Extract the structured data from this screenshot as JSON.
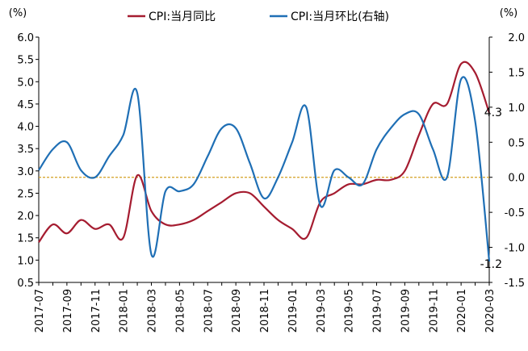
{
  "chart_data": {
    "type": "line",
    "left_unit": "(%)",
    "right_unit": "(%)",
    "left_ylim": [
      0.5,
      6.0
    ],
    "left_ticks": [
      "6.0",
      "5.5",
      "5.0",
      "4.5",
      "4.0",
      "3.5",
      "3.0",
      "2.5",
      "2.0",
      "1.5",
      "1.0",
      "0.5"
    ],
    "right_ylim": [
      -1.5,
      2.0
    ],
    "right_ticks": [
      "2.0",
      "1.5",
      "1.0",
      "0.5",
      "0.0",
      "-0.5",
      "-1.0",
      "-1.5"
    ],
    "x_labels": [
      "2017-07",
      "2017-09",
      "2017-11",
      "2018-01",
      "2018-03",
      "2018-05",
      "2018-07",
      "2018-09",
      "2018-11",
      "2019-01",
      "2019-03",
      "2019-05",
      "2019-07",
      "2019-09",
      "2019-11",
      "2020-01",
      "2020-03"
    ],
    "x": [
      "2017-07",
      "2017-08",
      "2017-09",
      "2017-10",
      "2017-11",
      "2017-12",
      "2018-01",
      "2018-02",
      "2018-03",
      "2018-04",
      "2018-05",
      "2018-06",
      "2018-07",
      "2018-08",
      "2018-09",
      "2018-10",
      "2018-11",
      "2018-12",
      "2019-01",
      "2019-02",
      "2019-03",
      "2019-04",
      "2019-05",
      "2019-06",
      "2019-07",
      "2019-08",
      "2019-09",
      "2019-10",
      "2019-11",
      "2019-12",
      "2020-01",
      "2020-02",
      "2020-03"
    ],
    "reference_line": {
      "axis": "right",
      "value": 0.0,
      "color": "#d4a020"
    },
    "series": [
      {
        "name": "CPI:当月同比",
        "axis": "left",
        "color": "#a51c30",
        "values": [
          1.4,
          1.8,
          1.6,
          1.9,
          1.7,
          1.8,
          1.5,
          2.9,
          2.1,
          1.8,
          1.8,
          1.9,
          2.1,
          2.3,
          2.5,
          2.5,
          2.2,
          1.9,
          1.7,
          1.5,
          2.3,
          2.5,
          2.7,
          2.7,
          2.8,
          2.8,
          3.0,
          3.8,
          4.5,
          4.5,
          5.4,
          5.2,
          4.3
        ]
      },
      {
        "name": "CPI:当月环比(右轴)",
        "axis": "right",
        "color": "#1f6fb5",
        "values": [
          0.1,
          0.4,
          0.5,
          0.1,
          0.0,
          0.3,
          0.6,
          1.2,
          -1.1,
          -0.2,
          -0.2,
          -0.1,
          0.3,
          0.7,
          0.7,
          0.2,
          -0.3,
          0.0,
          0.5,
          1.0,
          -0.4,
          0.1,
          0.0,
          -0.1,
          0.4,
          0.7,
          0.9,
          0.9,
          0.4,
          0.0,
          1.4,
          0.8,
          -1.2
        ]
      }
    ],
    "annotations": [
      {
        "text": "4.3",
        "series": 0
      },
      {
        "text": "-1.2",
        "series": 1
      }
    ]
  }
}
